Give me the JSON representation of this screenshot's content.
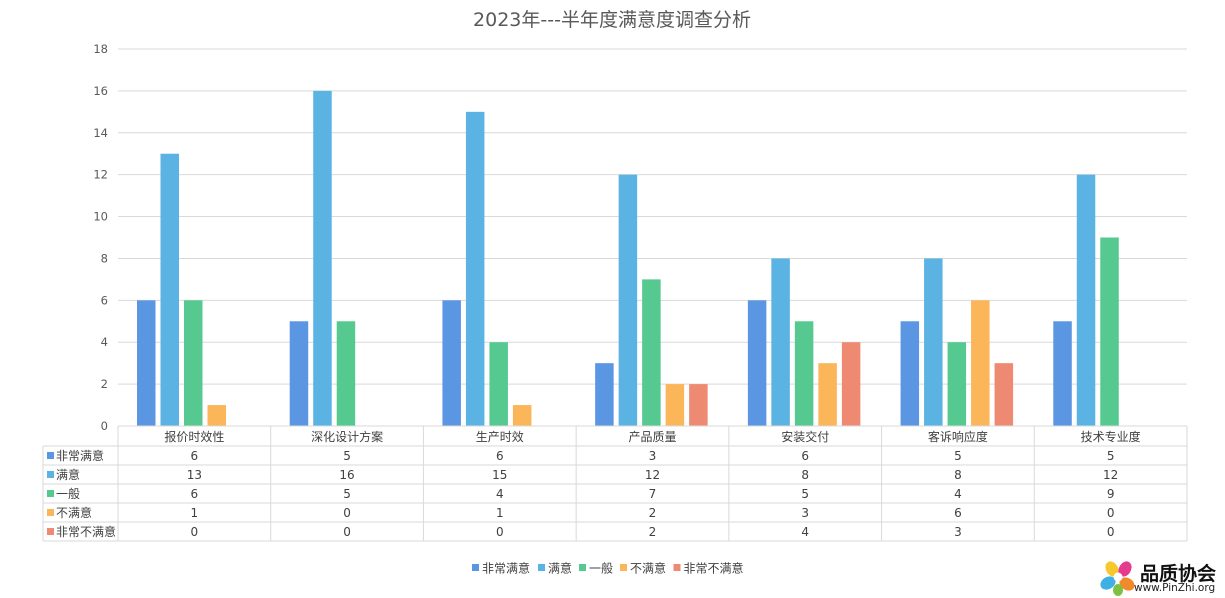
{
  "chart_data": {
    "type": "bar",
    "title": "2023年---半年度满意度调查分析",
    "categories": [
      "报价时效性",
      "深化设计方案",
      "生产时效",
      "产品质量",
      "安装交付",
      "客诉响应度",
      "技术专业度"
    ],
    "series": [
      {
        "name": "非常满意",
        "color": "#5b96e3",
        "values": [
          6,
          5,
          6,
          3,
          6,
          5,
          5
        ]
      },
      {
        "name": "满意",
        "color": "#5ab3e3",
        "values": [
          13,
          16,
          15,
          12,
          8,
          8,
          12
        ]
      },
      {
        "name": "一般",
        "color": "#55c990",
        "values": [
          6,
          5,
          4,
          7,
          5,
          4,
          9
        ]
      },
      {
        "name": "不满意",
        "color": "#fbb65a",
        "values": [
          1,
          0,
          1,
          2,
          3,
          6,
          0
        ]
      },
      {
        "name": "非常不满意",
        "color": "#ee8a72",
        "values": [
          0,
          0,
          0,
          2,
          4,
          3,
          0
        ]
      }
    ],
    "ylim": [
      0,
      18
    ],
    "yticks": [
      0,
      2,
      4,
      6,
      8,
      10,
      12,
      14,
      16,
      18
    ],
    "grid": true,
    "legend": "bottom",
    "data_table": true
  },
  "logo": {
    "name": "品质协会",
    "url": "www.PinZhi.org"
  }
}
